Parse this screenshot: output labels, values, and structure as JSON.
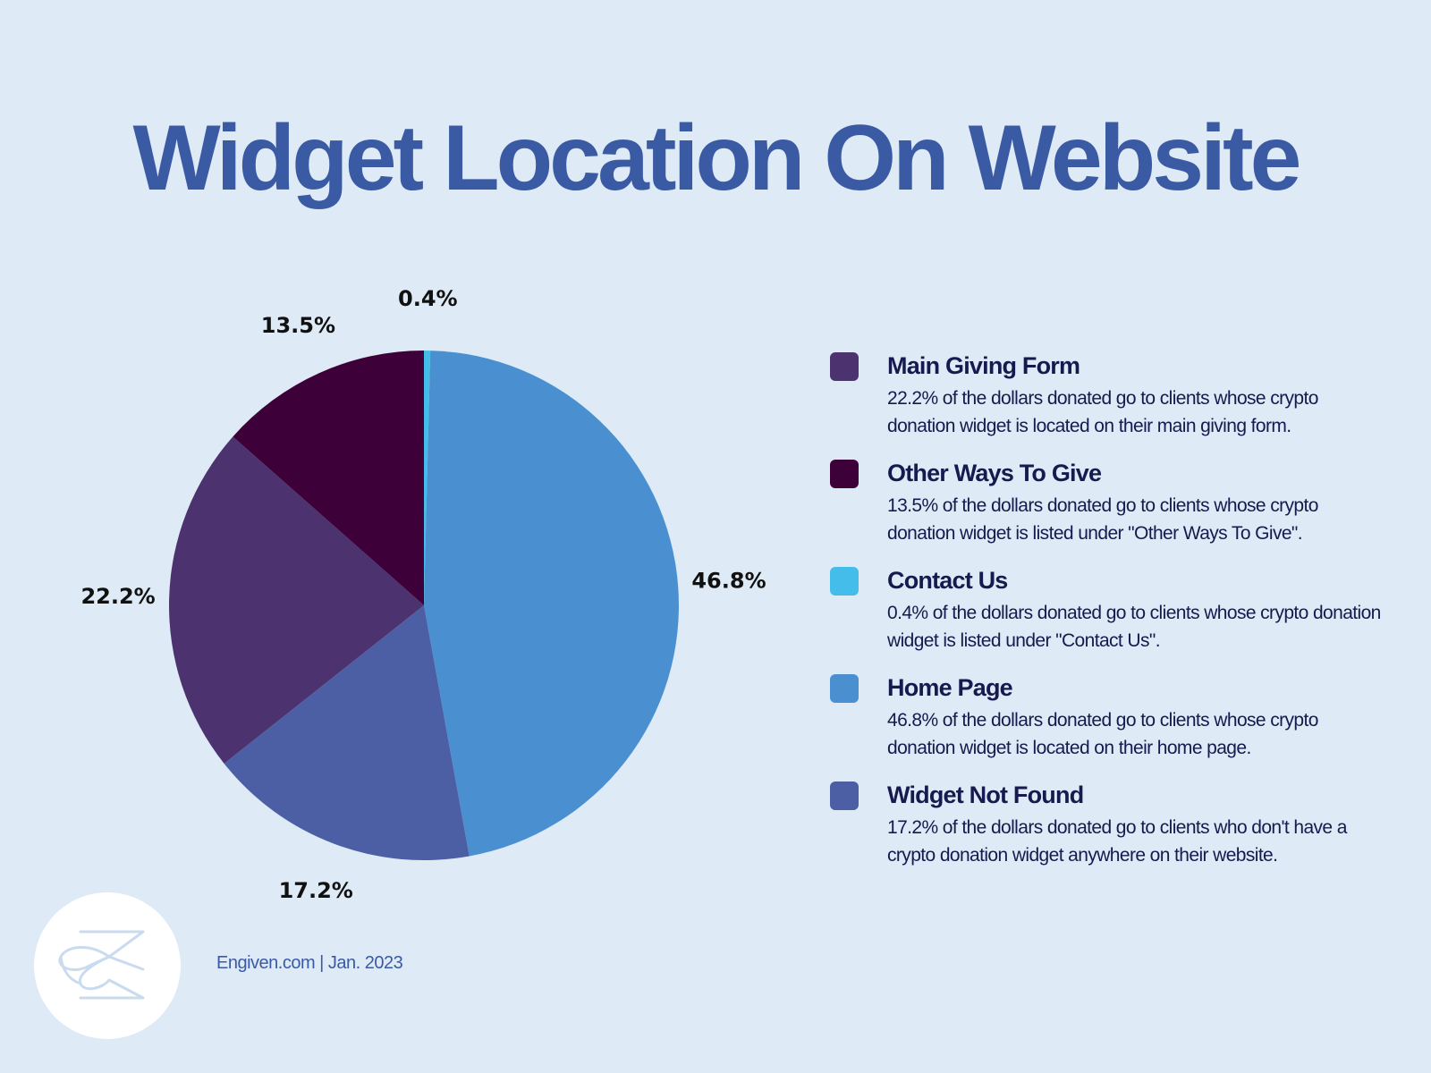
{
  "title": "Widget Location On Website",
  "footer": {
    "source": "Engiven.com | Jan. 2023"
  },
  "chart_data": {
    "type": "pie",
    "title": "Widget Location On Website",
    "unit": "%",
    "slices": [
      {
        "name": "Contact Us",
        "value": 0.4,
        "label": "0.4%",
        "color": "#45bdea"
      },
      {
        "name": "Home Page",
        "value": 46.8,
        "label": "46.8%",
        "color": "#4a8fd0"
      },
      {
        "name": "Widget Not Found",
        "value": 17.2,
        "label": "17.2%",
        "color": "#4d5fa4"
      },
      {
        "name": "Main Giving Form",
        "value": 22.2,
        "label": "22.2%",
        "color": "#4c326f"
      },
      {
        "name": "Other Ways To Give",
        "value": 13.5,
        "label": "13.5%",
        "color": "#3d0038"
      }
    ],
    "start_angle": "12 o'clock",
    "direction": "clockwise",
    "legend_position": "right"
  },
  "legend": [
    {
      "title": "Main Giving Form",
      "color": "#4c326f",
      "desc": "22.2% of the dollars donated go to clients whose crypto donation widget is located on their main giving form."
    },
    {
      "title": "Other Ways To Give",
      "color": "#3d0038",
      "desc": "13.5% of the dollars donated go to clients whose crypto donation widget is listed under \"Other Ways To Give\"."
    },
    {
      "title": "Contact Us",
      "color": "#45bdea",
      "desc": "0.4% of the dollars donated go to clients whose crypto donation widget is listed under \"Contact Us\"."
    },
    {
      "title": "Home Page",
      "color": "#4a8fd0",
      "desc": "46.8% of the dollars donated go to clients whose crypto donation widget is located on their home page."
    },
    {
      "title": "Widget Not Found",
      "color": "#4d5fa4",
      "desc": "17.2% of the dollars donated go to clients who don't have a crypto donation widget anywhere on their website."
    }
  ],
  "icons": {
    "logo": "engiven-logo-icon"
  }
}
